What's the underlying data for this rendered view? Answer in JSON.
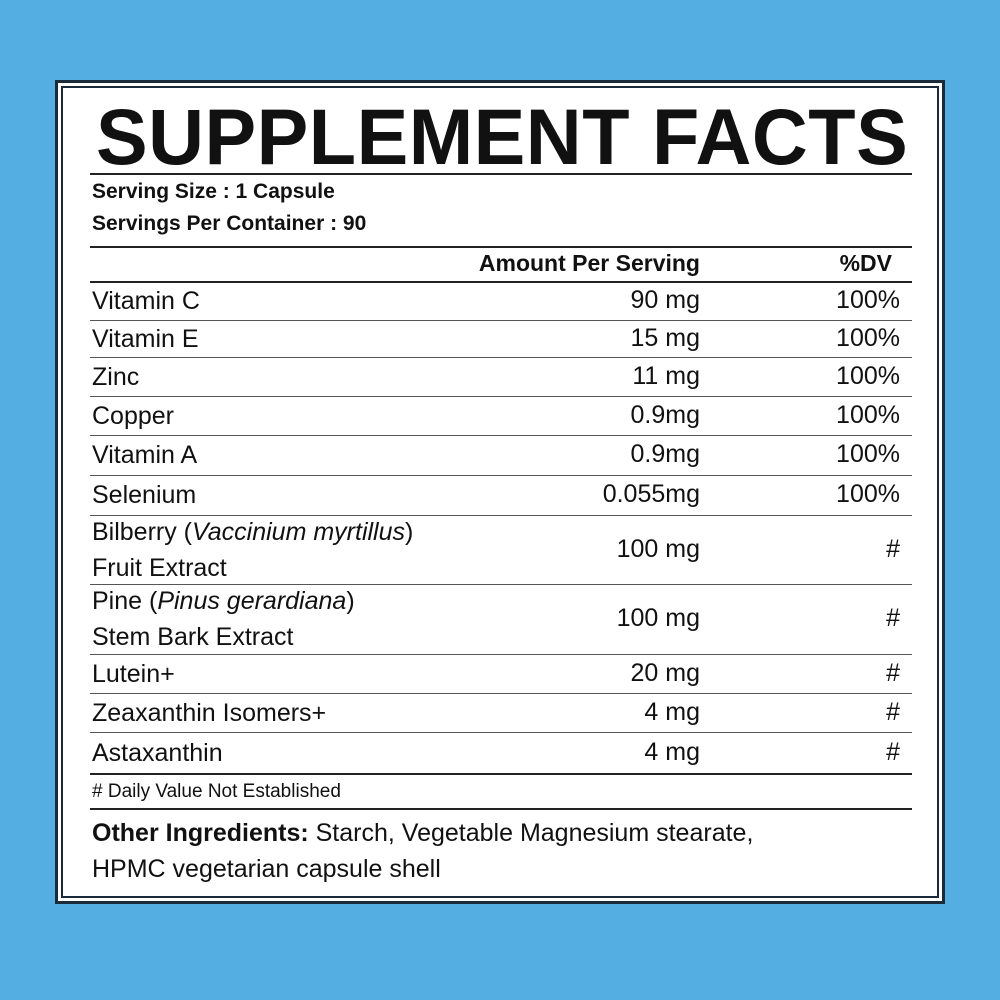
{
  "title": "SUPPLEMENT FACTS",
  "serving_size": "Serving Size : 1 Capsule",
  "servings_per_container": "Servings Per Container : 90",
  "header": {
    "amount": "Amount Per Serving",
    "dv": "%DV"
  },
  "rows": [
    {
      "name": "Vitamin C",
      "amount": "90 mg",
      "dv": "100%"
    },
    {
      "name": "Vitamin E",
      "amount": "15 mg",
      "dv": "100%"
    },
    {
      "name": "Zinc",
      "amount": "11 mg",
      "dv": "100%"
    },
    {
      "name": "Copper",
      "amount": "0.9mg",
      "dv": "100%"
    },
    {
      "name": "Vitamin A",
      "amount": "0.9mg",
      "dv": "100%"
    },
    {
      "name": "Selenium",
      "amount": "0.055mg",
      "dv": "100%"
    },
    {
      "name_pre": "Bilberry (",
      "name_italic": "Vaccinium myrtillus",
      "name_post": ")",
      "name_line2": "Fruit Extract",
      "amount": "100 mg",
      "dv": "#"
    },
    {
      "name_pre": "Pine (",
      "name_italic": "Pinus gerardiana",
      "name_post": ")",
      "name_line2": "Stem Bark Extract",
      "amount": "100 mg",
      "dv": "#"
    },
    {
      "name": "Lutein+",
      "amount": "20 mg",
      "dv": "#"
    },
    {
      "name": "Zeaxanthin Isomers+",
      "amount": "4 mg",
      "dv": "#"
    },
    {
      "name": "Astaxanthin",
      "amount": "4 mg",
      "dv": "#"
    }
  ],
  "footnote": "# Daily Value Not Established",
  "other_ingredients": {
    "label": "Other Ingredients:",
    "text": " Starch, Vegetable Magnesium stearate, HPMC vegetarian capsule shell"
  },
  "colors": {
    "background": "#55aee2",
    "border": "#1c2b3a",
    "panel": "#ffffff"
  }
}
